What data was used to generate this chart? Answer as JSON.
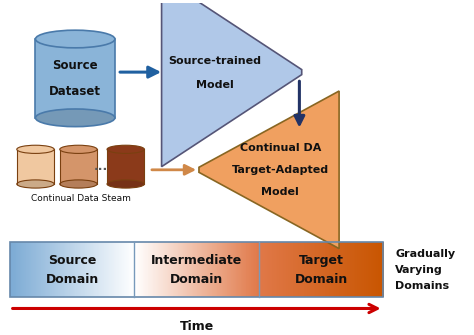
{
  "fig_width": 4.74,
  "fig_height": 3.35,
  "dpi": 100,
  "bg_color": "#ffffff",
  "cylinder_source_label1": "Source",
  "cylinder_source_label2": "Dataset",
  "cylinder_source_color": "#8ab4d8",
  "cylinder_source_edge": "#4a7aaa",
  "funnel_blue_label1": "Source-trained",
  "funnel_blue_label2": "Model",
  "funnel_blue_color": "#b0c8e8",
  "funnel_blue_edge": "#555577",
  "funnel_orange_label1": "Continual DA",
  "funnel_orange_label2": "Target-Adapted",
  "funnel_orange_label3": "Model",
  "funnel_orange_color": "#f0a060",
  "funnel_orange_edge": "#886622",
  "arrow_blue_color": "#2060a0",
  "arrow_dark_color": "#223366",
  "arrow_orange_color": "#d08848",
  "cylinders_continual_colors": [
    "#f0c8a0",
    "#d4956a",
    "#8b3a1a"
  ],
  "cylinders_continual_label": "Continual Data Steam",
  "bar_left_color": "#7baad4",
  "bar_mid_color": "#e07848",
  "bar_right_color": "#c85500",
  "bar_label_source": [
    "Source",
    "Domain"
  ],
  "bar_label_middle": [
    "Intermediate",
    "Domain"
  ],
  "bar_label_target": [
    "Target",
    "Domain"
  ],
  "bar_right_label": [
    "Gradually",
    "Varying",
    "Domains"
  ],
  "time_arrow_color": "#cc0000",
  "time_label": "Time"
}
